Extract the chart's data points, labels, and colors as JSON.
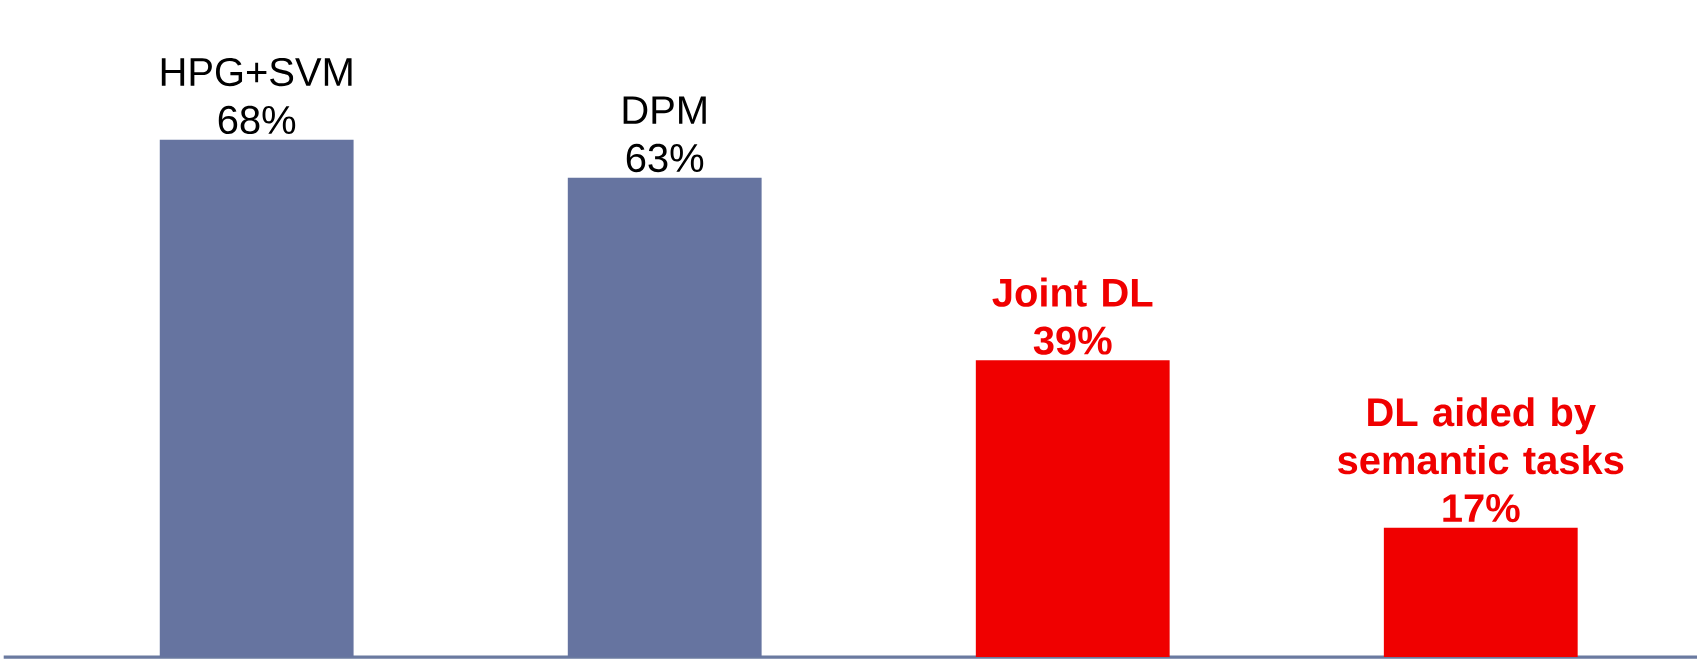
{
  "chart_data": {
    "type": "bar",
    "categories": [
      "HPG+SVM",
      "DPM",
      "Joint DL",
      "DL aided by semantic tasks"
    ],
    "values": [
      68,
      63,
      39,
      17
    ],
    "value_labels": [
      "68%",
      "63%",
      "39%",
      "17%"
    ],
    "colors": [
      "#6674a0",
      "#6674a0",
      "#f00000",
      "#f00000"
    ]
  }
}
